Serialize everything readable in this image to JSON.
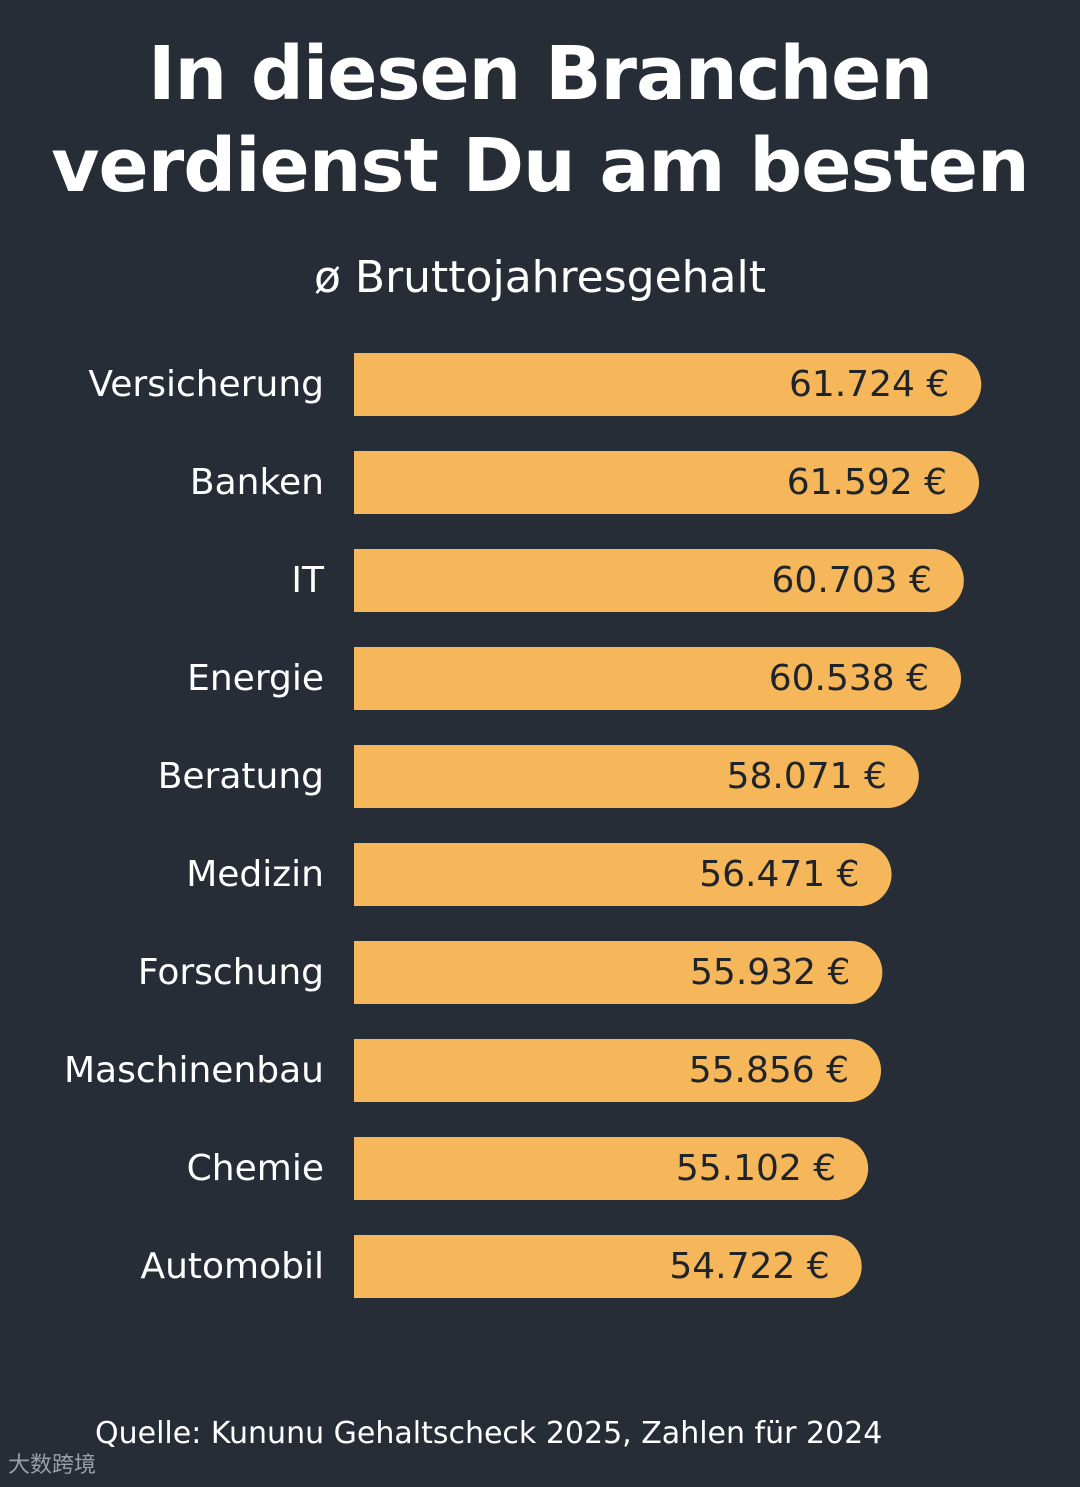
{
  "title_line1": "In diesen Branchen",
  "title_line2": "verdienst Du am besten",
  "subtitle": "ø Bruttojahresgehalt",
  "source": "Quelle: Kununu Gehaltscheck 2025, Zahlen für 2024",
  "watermark": "大数跨境",
  "colors": {
    "background": "#262d36",
    "bar": "#f5b75a",
    "bar_text": "#1f232a",
    "text": "#ffffff"
  },
  "chart_data": {
    "type": "bar",
    "orientation": "horizontal",
    "title": "In diesen Branchen verdienst Du am besten",
    "subtitle": "ø Bruttojahresgehalt",
    "categories": [
      "Versicherung",
      "Banken",
      "IT",
      "Energie",
      "Beratung",
      "Medizin",
      "Forschung",
      "Maschinenbau",
      "Chemie",
      "Automobil"
    ],
    "values": [
      61724,
      61592,
      60703,
      60538,
      58071,
      56471,
      55932,
      55856,
      55102,
      54722
    ],
    "value_labels": [
      "61.724 €",
      "61.592 €",
      "60.703 €",
      "60.538 €",
      "58.071 €",
      "56.471 €",
      "55.932 €",
      "55.856 €",
      "55.102 €",
      "54.722 €"
    ],
    "unit": "€",
    "xlim": [
      25000,
      62000
    ],
    "grid": false,
    "legend": "none"
  }
}
